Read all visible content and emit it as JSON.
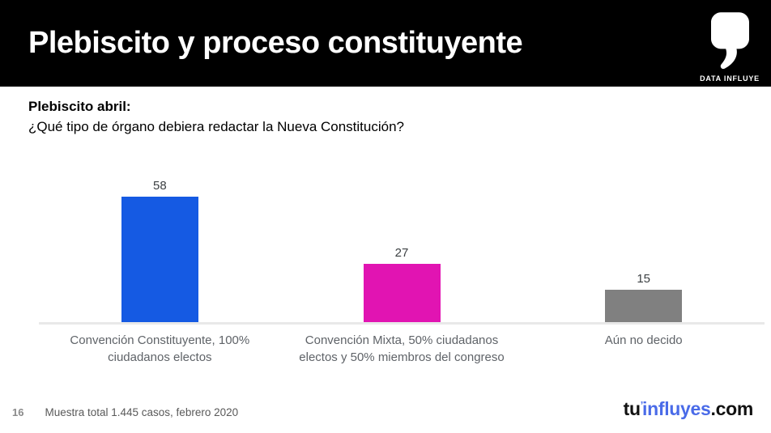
{
  "header": {
    "title": "Plebiscito y proceso constituyente",
    "brand_name": "DATA INFLUYE"
  },
  "question": {
    "lead": "Plebiscito abril:",
    "text": "¿Qué tipo de órgano debiera redactar la Nueva Constitución?"
  },
  "chart_data": {
    "type": "bar",
    "categories": [
      "Convención Constituyente, 100% ciudadanos electos",
      "Convención Mixta, 50% ciudadanos electos y 50% miembros del congreso",
      "Aún no decido"
    ],
    "values": [
      58,
      27,
      15
    ],
    "bar_colors": [
      "#155ae3",
      "#e114b2",
      "#808080"
    ],
    "title": "",
    "xlabel": "",
    "ylabel": "",
    "ylim": [
      0,
      60
    ],
    "grid": false,
    "legend": false,
    "value_labels": true
  },
  "footer": {
    "page_number": "16",
    "source": "Muestra total 1.445 casos, febrero 2020",
    "logo": {
      "prefix": "tu",
      "apostrophe": "’",
      "highlight": "influyes",
      "suffix": ".com",
      "highlight_color": "#4a6be8"
    }
  },
  "colors": {
    "header_bg": "#000000",
    "axis_line": "#e9e9e9",
    "category_label": "#5f6368",
    "value_label": "#3c4043",
    "footer_text": "#595959"
  }
}
